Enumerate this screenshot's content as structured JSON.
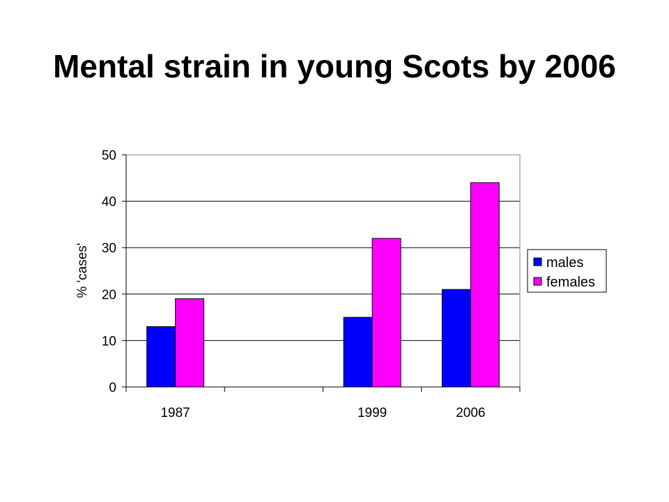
{
  "slide": {
    "title": "Mental strain in young Scots by 2006"
  },
  "chart_data": {
    "type": "bar",
    "categories": [
      "1987",
      "",
      "1999",
      "2006"
    ],
    "series": [
      {
        "name": "males",
        "values": [
          13,
          null,
          15,
          21
        ],
        "color": "#0000FF"
      },
      {
        "name": "females",
        "values": [
          19,
          null,
          32,
          44
        ],
        "color": "#FF00FF"
      }
    ],
    "title": "",
    "xlabel": "",
    "ylabel": "% 'cases'",
    "ylim": [
      0,
      50
    ],
    "yticks": [
      0,
      10,
      20,
      30,
      40,
      50
    ],
    "grid": true,
    "legend_position": "right"
  }
}
